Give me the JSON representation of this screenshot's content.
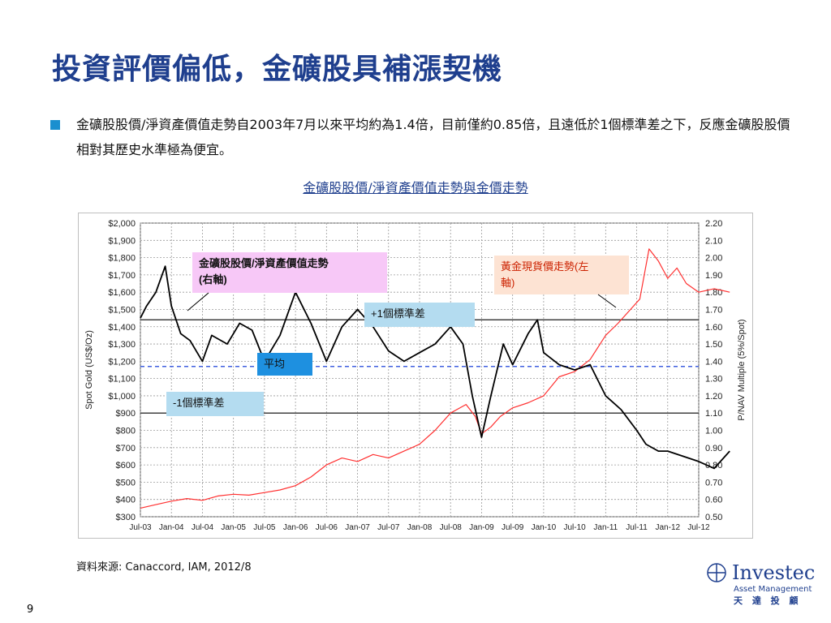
{
  "title": "投資評價偏低，金礦股具補漲契機",
  "bullet": {
    "text": "金礦股股價/淨資產價值走勢自2003年7月以來平均約為1.4倍，目前僅約0.85倍，且遠低於1個標準差之下，反應金礦股股價相對其歷史水準極為便宜。"
  },
  "chart_heading": "金礦股股價/淨資產價值走勢與金價走勢",
  "source": "資料來源: Canaccord, IAM, 2012/8",
  "page_number": "9",
  "logo": {
    "name": "Investec",
    "subtitle": "Asset Management",
    "chinese": "天 達 投 顧"
  },
  "colors": {
    "title": "#1f3f8e",
    "bullet": "#1a8fcf",
    "gold_series": "#ff3030",
    "ratio_series": "#000000",
    "mean_line": "#3f5fdf",
    "std_line": "#404040",
    "note_ratio_bg": "#f7c8f7",
    "note_gold_bg": "#fde3d3",
    "note_band_bg": "#b4dcf0",
    "note_mean_bg": "#1e90e0"
  },
  "chart_data": {
    "type": "line",
    "x_labels": [
      "Jul-03",
      "Jan-04",
      "Jul-04",
      "Jan-05",
      "Jul-05",
      "Jan-06",
      "Jul-06",
      "Jan-07",
      "Jul-07",
      "Jan-08",
      "Jul-08",
      "Jan-09",
      "Jul-09",
      "Jan-10",
      "Jul-10",
      "Jan-11",
      "Jul-11",
      "Jan-12",
      "Jul-12"
    ],
    "y_left": {
      "label": "Spot Gold (US$/Oz)",
      "min": 300,
      "max": 2000,
      "ticks": [
        "$2,000",
        "$1,900",
        "$1,800",
        "$1,700",
        "$1,600",
        "$1,500",
        "$1,400",
        "$1,300",
        "$1,200",
        "$1,100",
        "$1,000",
        "$900",
        "$800",
        "$700",
        "$600",
        "$500",
        "$400",
        "$300"
      ]
    },
    "y_right": {
      "label": "P/NAV Multiple (5%/Spot)",
      "min": 0.5,
      "max": 2.2,
      "ticks": [
        "2.20",
        "2.10",
        "2.00",
        "1.90",
        "1.80",
        "1.70",
        "1.60",
        "1.50",
        "1.40",
        "1.30",
        "1.20",
        "1.10",
        "1.00",
        "0.90",
        "0.80",
        "0.70",
        "0.60",
        "0.50"
      ]
    },
    "reference_lines": {
      "mean": 1.37,
      "plus_1_std": 1.64,
      "minus_1_std": 1.1
    },
    "series": [
      {
        "name": "黃金現貨價走勢",
        "axis": "left",
        "color": "#ff3030",
        "points": [
          [
            0,
            350
          ],
          [
            0.5,
            370
          ],
          [
            1,
            390
          ],
          [
            1.5,
            405
          ],
          [
            2,
            395
          ],
          [
            2.5,
            420
          ],
          [
            3,
            430
          ],
          [
            3.5,
            425
          ],
          [
            4,
            440
          ],
          [
            4.5,
            455
          ],
          [
            5,
            480
          ],
          [
            5.5,
            530
          ],
          [
            6,
            600
          ],
          [
            6.5,
            640
          ],
          [
            7,
            620
          ],
          [
            7.5,
            660
          ],
          [
            8,
            640
          ],
          [
            8.5,
            680
          ],
          [
            9,
            720
          ],
          [
            9.5,
            800
          ],
          [
            10,
            900
          ],
          [
            10.5,
            950
          ],
          [
            10.8,
            880
          ],
          [
            11,
            780
          ],
          [
            11.3,
            820
          ],
          [
            11.6,
            880
          ],
          [
            12,
            930
          ],
          [
            12.5,
            960
          ],
          [
            13,
            1000
          ],
          [
            13.5,
            1110
          ],
          [
            14,
            1140
          ],
          [
            14.5,
            1210
          ],
          [
            15,
            1350
          ],
          [
            15.4,
            1420
          ],
          [
            15.8,
            1500
          ],
          [
            16.1,
            1560
          ],
          [
            16.4,
            1850
          ],
          [
            16.7,
            1780
          ],
          [
            17,
            1680
          ],
          [
            17.3,
            1740
          ],
          [
            17.6,
            1650
          ],
          [
            18,
            1600
          ],
          [
            18.5,
            1620
          ],
          [
            19,
            1600
          ]
        ]
      },
      {
        "name": "金礦股股價/淨資產價值走勢",
        "axis": "right",
        "color": "#000000",
        "points": [
          [
            0,
            1.65
          ],
          [
            0.2,
            1.72
          ],
          [
            0.5,
            1.8
          ],
          [
            0.8,
            1.95
          ],
          [
            1,
            1.72
          ],
          [
            1.3,
            1.56
          ],
          [
            1.6,
            1.52
          ],
          [
            2,
            1.4
          ],
          [
            2.3,
            1.55
          ],
          [
            2.8,
            1.5
          ],
          [
            3.2,
            1.62
          ],
          [
            3.6,
            1.58
          ],
          [
            4,
            1.4
          ],
          [
            4.5,
            1.55
          ],
          [
            5,
            1.8
          ],
          [
            5.5,
            1.62
          ],
          [
            6,
            1.4
          ],
          [
            6.5,
            1.6
          ],
          [
            7,
            1.7
          ],
          [
            7.5,
            1.6
          ],
          [
            8,
            1.46
          ],
          [
            8.5,
            1.4
          ],
          [
            9,
            1.45
          ],
          [
            9.5,
            1.5
          ],
          [
            10,
            1.6
          ],
          [
            10.4,
            1.5
          ],
          [
            10.7,
            1.2
          ],
          [
            11,
            0.96
          ],
          [
            11.3,
            1.2
          ],
          [
            11.7,
            1.5
          ],
          [
            12,
            1.38
          ],
          [
            12.5,
            1.56
          ],
          [
            12.8,
            1.64
          ],
          [
            13,
            1.45
          ],
          [
            13.5,
            1.38
          ],
          [
            14,
            1.35
          ],
          [
            14.5,
            1.38
          ],
          [
            15,
            1.2
          ],
          [
            15.5,
            1.12
          ],
          [
            16,
            1.0
          ],
          [
            16.3,
            0.92
          ],
          [
            16.7,
            0.88
          ],
          [
            17,
            0.88
          ],
          [
            17.5,
            0.85
          ],
          [
            18,
            0.82
          ],
          [
            18.5,
            0.78
          ],
          [
            19,
            0.88
          ]
        ]
      }
    ],
    "annotations": [
      {
        "id": "ratio",
        "text": "金礦股股價/淨資產價值走勢(右軸)"
      },
      {
        "id": "gold",
        "text": "黃金現貨價走勢(左軸)"
      },
      {
        "id": "plus_std",
        "text": "+1個標準差"
      },
      {
        "id": "mean",
        "text": "平均"
      },
      {
        "id": "minus_std",
        "text": "-1個標準差"
      }
    ]
  }
}
